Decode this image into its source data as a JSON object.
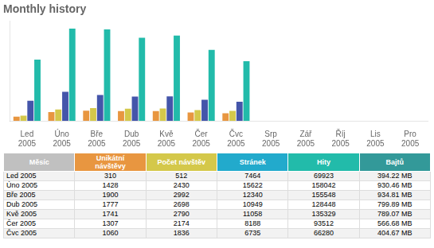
{
  "chart_data": {
    "type": "bar",
    "title": "Monthly history",
    "categories": [
      "Led\n2005",
      "Úno\n2005",
      "Bře\n2005",
      "Dub\n2005",
      "Kvě\n2005",
      "Čer\n2005",
      "Čvc\n2005",
      "Srp\n2005",
      "Zář\n2005",
      "Říj\n2005",
      "Lis\n2005",
      "Pro\n2005"
    ],
    "series": [
      {
        "color": "#E89640",
        "values": [
          0.0443,
          0.0951,
          0.1096,
          0.106,
          0.105,
          0.0909,
          0.0819,
          0,
          0,
          0,
          0,
          0
        ]
      },
      {
        "color": "#D4C84A",
        "values": [
          0.0569,
          0.124,
          0.1376,
          0.1307,
          0.1329,
          0.1173,
          0.1078,
          0,
          0,
          0,
          0,
          0
        ]
      },
      {
        "color": "#4455AA",
        "values": [
          0.2173,
          0.3144,
          0.2794,
          0.2632,
          0.2645,
          0.2276,
          0.2064,
          0,
          0,
          0,
          0,
          0
        ]
      },
      {
        "color": "#22BBAA",
        "values": [
          0.6652,
          1,
          0.9921,
          0.9015,
          0.9254,
          0.7692,
          0.6476,
          0,
          0,
          0,
          0,
          0
        ]
      }
    ],
    "ylim": [
      0,
      1.08
    ],
    "tick_labels": "x",
    "grid": false,
    "table": {
      "columns": [
        "Měsíc",
        "Unikátní\nnávštěvy",
        "Počet návštěv",
        "Stránek",
        "Hity",
        "Bajtů"
      ],
      "header_colors": [
        "#C0C0C0",
        "#E89640",
        "#D4C84A",
        "#22AACC",
        "#22BBAA",
        "#339999"
      ],
      "rows": [
        [
          "Led 2005",
          "310",
          "512",
          "7464",
          "69923",
          "394.22 MB"
        ],
        [
          "Úno 2005",
          "1428",
          "2430",
          "15622",
          "158042",
          "930.46 MB"
        ],
        [
          "Bře 2005",
          "1900",
          "2992",
          "12340",
          "155548",
          "934.81 MB"
        ],
        [
          "Dub 2005",
          "1777",
          "2698",
          "10949",
          "128448",
          "799.89 MB"
        ],
        [
          "Kvě 2005",
          "1741",
          "2790",
          "11058",
          "135329",
          "789.07 MB"
        ],
        [
          "Čer 2005",
          "1307",
          "2174",
          "8188",
          "93512",
          "566.68 MB"
        ],
        [
          "Čvc 2005",
          "1060",
          "1836",
          "6735",
          "66280",
          "404.67 MB"
        ]
      ]
    }
  }
}
